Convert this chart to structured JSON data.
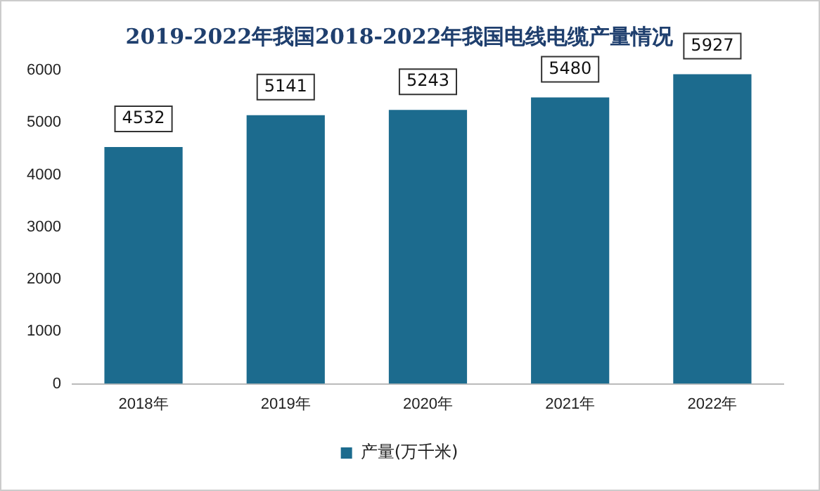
{
  "chart_data": {
    "type": "bar",
    "title": "2019-2022年我国2018-2022年我国电线电缆产量情况",
    "categories": [
      "2018年",
      "2019年",
      "2020年",
      "2021年",
      "2022年"
    ],
    "series": [
      {
        "name": "产量(万千米)",
        "color": "#1c6b8e",
        "values": [
          4532,
          5141,
          5243,
          5480,
          5927
        ]
      }
    ],
    "ylim": [
      0,
      6000
    ],
    "yticks": [
      0,
      1000,
      2000,
      3000,
      4000,
      5000,
      6000
    ],
    "grid": false,
    "legend": "bottom",
    "data_labels": true
  }
}
